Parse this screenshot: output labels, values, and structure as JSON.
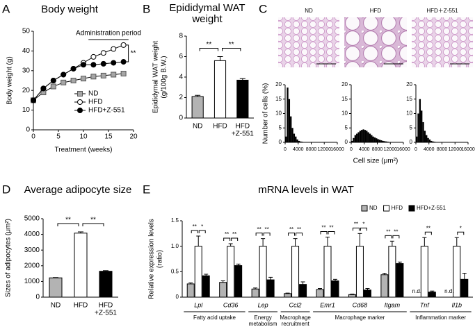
{
  "chart_data": [
    {
      "panel": "A",
      "type": "line",
      "title": "Body weight",
      "xlabel": "Treatment (weeks)",
      "ylabel": "Body weight (g)",
      "x": [
        0,
        2,
        4,
        6,
        8,
        10,
        12,
        14,
        16,
        18
      ],
      "xlim": [
        0,
        20
      ],
      "xticks": [
        0,
        5,
        10,
        15,
        20
      ],
      "ylim": [
        0,
        50
      ],
      "yticks": [
        0,
        10,
        20,
        30,
        40,
        50
      ],
      "legend": "lower-right",
      "series": [
        {
          "name": "ND",
          "marker": "square",
          "color": "#a6a6a6",
          "values": [
            15,
            19,
            22,
            24,
            25,
            26,
            27,
            27.5,
            28,
            28.5
          ]
        },
        {
          "name": "HFD",
          "marker": "circle",
          "color": "#ffffff",
          "values": [
            15,
            21,
            25,
            28,
            31,
            34,
            37,
            39,
            41,
            43
          ]
        },
        {
          "name": "HFD+Z-551",
          "marker": "circle",
          "color": "#000000",
          "values": [
            15,
            21,
            25,
            28,
            31,
            33,
            33,
            33.5,
            34,
            34.5
          ]
        }
      ],
      "annotation": "Administration period",
      "annotation_span": [
        11,
        19
      ],
      "significance": "**"
    },
    {
      "panel": "B",
      "type": "bar",
      "title": [
        "Epididymal WAT",
        "weight"
      ],
      "ylabel": [
        "Epididymal WAT weight",
        "(g/100g B.W.)"
      ],
      "categories": [
        "ND",
        "HFD",
        [
          "HFD",
          "+Z-551"
        ]
      ],
      "values": [
        2.1,
        5.6,
        3.7
      ],
      "errors": [
        0.12,
        0.4,
        0.15
      ],
      "colors": [
        "#b3b3b3",
        "#ffffff",
        "#000000"
      ],
      "ylim": [
        0,
        8
      ],
      "yticks": [
        0,
        2,
        4,
        6,
        8
      ],
      "significance": [
        "**",
        "**"
      ]
    },
    {
      "panel": "C",
      "type": "histogram",
      "xlabel": "Cell size (μm²)",
      "ylabel": "Number of cells (%)",
      "bins": [
        0,
        500,
        1000,
        1500,
        2000,
        2500,
        3000,
        3500,
        4000,
        4500,
        5000,
        5500,
        6000,
        6500,
        7000,
        7500,
        8000,
        8500,
        9000,
        9500,
        10000,
        10500,
        11000,
        11500,
        12000
      ],
      "xlim": [
        0,
        16000
      ],
      "xticks": [
        0,
        4000,
        8000,
        12000,
        16000
      ],
      "ylim": [
        0,
        20
      ],
      "yticks": [
        0,
        5,
        10,
        15,
        20
      ],
      "color": "#000000",
      "series": [
        {
          "name": "ND",
          "values": [
            2,
            19,
            15,
            9,
            5,
            3,
            2,
            1,
            0.5,
            0.3,
            0.2,
            0,
            0,
            0,
            0,
            0,
            0,
            0,
            0,
            0,
            0,
            0,
            0,
            0
          ]
        },
        {
          "name": "HFD",
          "values": [
            0.5,
            1.5,
            2.5,
            3,
            3.5,
            4,
            4.3,
            4.5,
            4.3,
            4,
            3.5,
            3,
            2.5,
            2,
            1.7,
            1.4,
            1.1,
            0.9,
            0.7,
            0.5,
            0.4,
            0.3,
            0.2,
            0.1
          ]
        },
        {
          "name": "HFD＋Z-551",
          "values": [
            2,
            10,
            15,
            11,
            7,
            4,
            2.5,
            1.5,
            1,
            0.5,
            0.3,
            0.2,
            0.1,
            0,
            0,
            0,
            0,
            0,
            0,
            0,
            0,
            0,
            0,
            0
          ]
        }
      ]
    },
    {
      "panel": "D",
      "type": "bar",
      "title": "Average adipocyte size",
      "ylabel": "Sizes of adipocytes (μm²)",
      "categories": [
        "ND",
        "HFD",
        [
          "HFD",
          "+Z-551"
        ]
      ],
      "values": [
        1230,
        4080,
        1650
      ],
      "errors": [
        20,
        80,
        40
      ],
      "colors": [
        "#b3b3b3",
        "#ffffff",
        "#000000"
      ],
      "ylim": [
        0,
        5000
      ],
      "yticks": [
        0,
        1000,
        2000,
        3000,
        4000,
        5000
      ],
      "significance": [
        "**",
        "**"
      ]
    },
    {
      "panel": "E",
      "type": "grouped_bar",
      "title": "mRNA levels in WAT",
      "ylabel": [
        "Relative expression levels",
        "(ratio)"
      ],
      "categories": [
        "Lpl",
        "Cd36",
        "Lep",
        "Ccl2",
        "Emr1",
        "Cd68",
        "Itgam",
        "Tnf",
        "Il1b"
      ],
      "ylim": [
        0,
        1.5
      ],
      "yticks": [
        0,
        0.5,
        {
          "value": 1,
          "label": "1.0"
        },
        1.5
      ],
      "legend": "top-right",
      "series": [
        {
          "name": "ND",
          "color": "#b3b3b3",
          "values": [
            0.26,
            0.29,
            0.16,
            0.07,
            0.15,
            0.05,
            0.44,
            null,
            null
          ],
          "errors": [
            0.02,
            0.03,
            0.02,
            0.01,
            0.02,
            0.01,
            0.03,
            null,
            null
          ],
          "value_labels": [
            null,
            null,
            null,
            null,
            null,
            null,
            null,
            "n.d.",
            "n.d."
          ]
        },
        {
          "name": "HFD",
          "color": "#ffffff",
          "values": [
            1,
            1,
            1,
            1,
            1,
            1,
            1,
            1,
            1
          ],
          "errors": [
            0.2,
            0.05,
            0.15,
            0.15,
            0.18,
            0.25,
            0.1,
            0.17,
            0.17
          ]
        },
        {
          "name": "HFD+Z-551",
          "color": "#000000",
          "values": [
            0.42,
            0.62,
            0.34,
            0.25,
            0.32,
            0.14,
            0.66,
            0.1,
            0.35
          ],
          "errors": [
            0.03,
            0.03,
            0.05,
            0.05,
            0.03,
            0.03,
            0.03,
            0.02,
            0.12
          ]
        }
      ],
      "significance": [
        [
          "**",
          "*"
        ],
        [
          "**",
          "**"
        ],
        [
          "**",
          "**"
        ],
        [
          "**",
          "**"
        ],
        [
          "**",
          "**"
        ],
        [
          "**",
          "*"
        ],
        [
          "**",
          "**"
        ],
        [
          null,
          "**"
        ],
        [
          null,
          "*"
        ]
      ],
      "groups": [
        {
          "label": "Fatty acid uptake",
          "categories": [
            "Lpl",
            "Cd36"
          ]
        },
        {
          "label": [
            "Energy",
            "metabolism"
          ],
          "categories": [
            "Lep"
          ]
        },
        {
          "label": [
            "Macrophage",
            "recruitment"
          ],
          "categories": [
            "Ccl2"
          ]
        },
        {
          "label": "Macrophage marker",
          "categories": [
            "Emr1",
            "Cd68",
            "Itgam"
          ]
        },
        {
          "label": "Inflammation marker",
          "categories": [
            "Tnf",
            "Il1b"
          ]
        }
      ]
    }
  ]
}
